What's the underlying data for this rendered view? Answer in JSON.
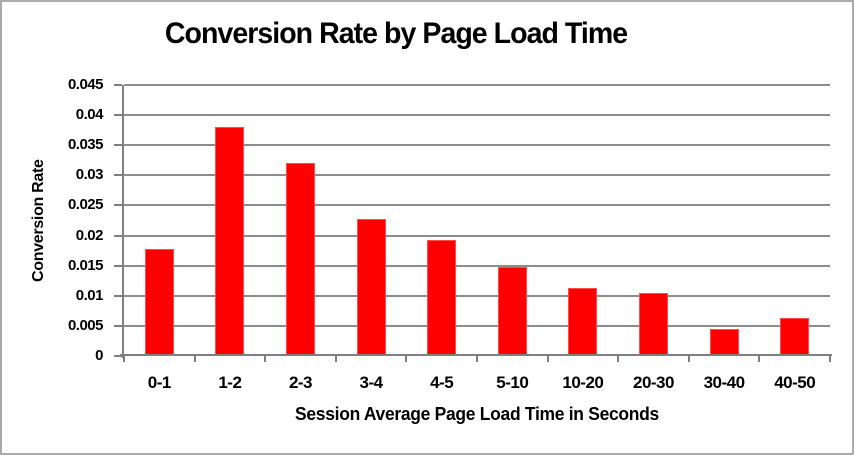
{
  "window": {
    "background": "#ffffff",
    "border_color": "#ababab"
  },
  "chart_data": {
    "type": "bar",
    "title": "Conversion Rate by Page Load Time",
    "xlabel": "Session Average Page Load Time in Seconds",
    "ylabel": "Conversion Rate",
    "categories": [
      "0-1",
      "1-2",
      "2-3",
      "3-4",
      "4-5",
      "5-10",
      "10-20",
      "20-30",
      "30-40",
      "40-50"
    ],
    "values": [
      0.0175,
      0.038,
      0.032,
      0.0226,
      0.019,
      0.0145,
      0.0111,
      0.0102,
      0.0042,
      0.006
    ],
    "ylim": [
      0,
      0.045
    ],
    "ytick_step": 0.005,
    "ytick_labels": [
      "0",
      "0.005",
      "0.01",
      "0.015",
      "0.02",
      "0.025",
      "0.03",
      "0.035",
      "0.04",
      "0.045"
    ],
    "grid": true,
    "legend": false,
    "bar_color": "#fe0000",
    "bar_edge_color": "#ff4d4d",
    "grid_color": "#8c8c8c",
    "axis_color": "#7f7f7f",
    "text_color": "#000000"
  }
}
